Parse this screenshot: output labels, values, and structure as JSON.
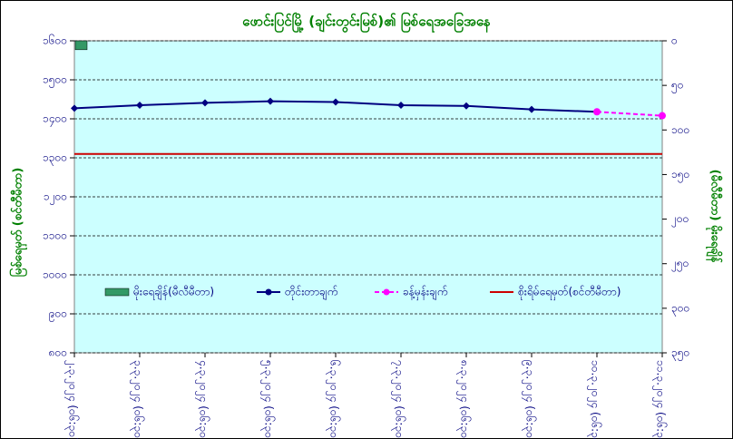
{
  "chart_data": {
    "type": "combo",
    "title": "ဖောင်းပြင်မြို့ (ချင်းတွင်းမြစ်)၏ မြစ်ရေအခြေအနေ",
    "y_label": "မြစ်ရေမှတ် (စင်တီမီတာ)",
    "y2_label": "(မီလီမီတာ) မိုးရေချိန်",
    "categories": [
      "၂.၃.၂၀၂၄ (၀၆:၃၀)",
      "၃.၃.၂၀၂၄ (၀၆:၃၀)",
      "၄.၃.၂၀၂၄ (၀၆:၃၀)",
      "၅.၃.၂၀၂၄ (၀၆:၃၀)",
      "၆.၃.၂၀၂၄ (၀၆:၃၀)",
      "၇.၃.၂၀၂၄ (၀၆:၃၀)",
      "၈.၃.၂၀၂၄ (၀၆:၃၀)",
      "၉.၃.၂၀၂၄ (၀၆:၃၀)",
      "၁၀.၃.၂၀၂၄ (၀၆:၃၀)",
      "၁၁.၃.၂၀၂၄ (၀၆:၃၀)"
    ],
    "series": [
      {
        "name": "မိုးရေချိန်(မီလီမီတာ)",
        "type": "bar",
        "axis": "y2",
        "color": "#339966",
        "values": [
          10,
          null,
          null,
          null,
          null,
          null,
          null,
          null,
          null,
          null
        ]
      },
      {
        "name": "တိုင်းတာချက်",
        "type": "line",
        "color": "#000080",
        "marker": true,
        "values": [
          1427,
          1435,
          1441,
          1445,
          1443,
          1435,
          1433,
          1424,
          1418,
          null
        ]
      },
      {
        "name": "ခန့်မှန်းချက်",
        "type": "line",
        "dashed": true,
        "color": "#ff00ff",
        "marker": true,
        "values": [
          null,
          null,
          null,
          null,
          null,
          null,
          null,
          null,
          1418,
          1408
        ]
      },
      {
        "name": "စိုးရိမ်ရေမှတ်(စင်တီမီတာ)",
        "type": "line",
        "color": "#cc0000",
        "values": [
          1310,
          1310,
          1310,
          1310,
          1310,
          1310,
          1310,
          1310,
          1310,
          1310
        ]
      }
    ],
    "ylim": [
      800,
      1600
    ],
    "yticks": [
      {
        "value": 800,
        "label": "၈၀၀"
      },
      {
        "value": 900,
        "label": "၉၀၀"
      },
      {
        "value": 1000,
        "label": "၁၀၀၀"
      },
      {
        "value": 1100,
        "label": "၁၁၀၀"
      },
      {
        "value": 1200,
        "label": "၁၂၀၀"
      },
      {
        "value": 1300,
        "label": "၁၃၀၀"
      },
      {
        "value": 1400,
        "label": "၁၄၀၀"
      },
      {
        "value": 1500,
        "label": "၁၅၀၀"
      },
      {
        "value": 1600,
        "label": "၁၆၀၀"
      }
    ],
    "y2lim": [
      350,
      0
    ],
    "y2ticks": [
      {
        "value": 0,
        "label": "၀"
      },
      {
        "value": 50,
        "label": "၅၀"
      },
      {
        "value": 100,
        "label": "၁၀၀"
      },
      {
        "value": 150,
        "label": "၁၅၀"
      },
      {
        "value": 200,
        "label": "၂၀၀"
      },
      {
        "value": 250,
        "label": "၂၅၀"
      },
      {
        "value": 300,
        "label": "၃၀၀"
      },
      {
        "value": 350,
        "label": "၃၅၀"
      }
    ],
    "grid": true,
    "plot_background": "#ccffff"
  }
}
